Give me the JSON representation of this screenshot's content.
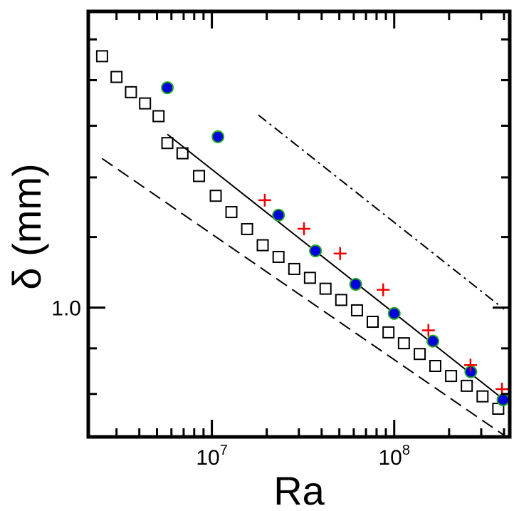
{
  "chart_data": {
    "type": "scatter",
    "title": "",
    "xlabel": "Ra",
    "ylabel": "δ (mm)",
    "xscale": "log",
    "yscale": "log",
    "xlim": [
      2100000,
      430000000
    ],
    "ylim": [
      0.716,
      2.15
    ],
    "x_ticks": [
      {
        "value": 10000000,
        "base": "10",
        "exp": "7"
      },
      {
        "value": 100000000,
        "base": "10",
        "exp": "8"
      }
    ],
    "y_ticks": [
      {
        "value": 1.0,
        "label": "1.0"
      }
    ],
    "series": [
      {
        "name": "open squares",
        "marker": "square",
        "color": "#000000",
        "x": [
          2500000,
          3000000,
          3600000,
          4300000,
          5100000,
          5700000,
          6900000,
          8500000,
          10500000,
          12800000,
          15600000,
          19000000,
          23200000,
          28300000,
          34500000,
          42000000,
          51200000,
          62500000,
          76200000,
          93000000,
          113000000,
          138000000,
          168000000,
          205000000,
          250000000,
          305000000,
          372000000
        ],
        "y": [
          1.915,
          1.815,
          1.745,
          1.695,
          1.64,
          1.53,
          1.49,
          1.405,
          1.335,
          1.28,
          1.225,
          1.175,
          1.14,
          1.105,
          1.08,
          1.05,
          1.02,
          0.993,
          0.964,
          0.938,
          0.912,
          0.887,
          0.86,
          0.838,
          0.817,
          0.795,
          0.77
        ]
      },
      {
        "name": "filled circles",
        "marker": "circle",
        "color": "#0000dd",
        "edge": "#22aa22",
        "x": [
          5700000,
          10800000,
          23200000,
          37000000,
          61500000,
          100000000,
          163000000,
          263000000,
          395000000
        ],
        "y": [
          1.765,
          1.555,
          1.27,
          1.158,
          1.062,
          0.985,
          0.917,
          0.847,
          0.788
        ]
      },
      {
        "name": "plus markers",
        "marker": "plus",
        "color": "#ee0000",
        "x": [
          19500000,
          32000000,
          50500000,
          87000000,
          154000000,
          262000000,
          390000000
        ],
        "y": [
          1.32,
          1.226,
          1.15,
          1.047,
          0.943,
          0.862,
          0.81
        ]
      }
    ],
    "lines": [
      {
        "name": "fit",
        "style": "solid",
        "x": [
          5700000,
          400000000
        ],
        "y": [
          1.565,
          0.788
        ]
      },
      {
        "name": "reference dashed",
        "style": "dashed",
        "x": [
          2500000,
          400000000
        ],
        "y": [
          1.47,
          0.719
        ]
      },
      {
        "name": "reference dash-dot",
        "style": "dashdot",
        "x": [
          18000000,
          400000000
        ],
        "y": [
          1.645,
          0.996
        ]
      }
    ]
  }
}
